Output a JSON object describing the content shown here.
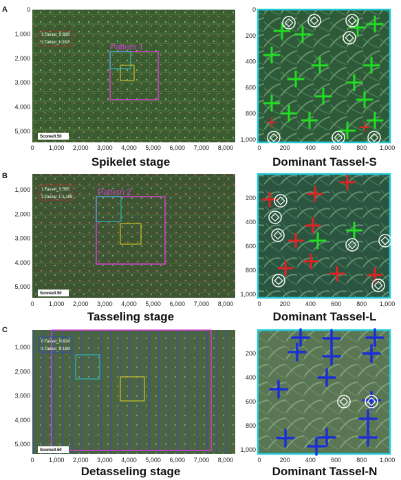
{
  "panels": [
    {
      "letter": "A",
      "stage_title": "Spikelet stage",
      "zoom_title": "Dominant Tassel-S",
      "legend": [
        "1:Tassel_S:939",
        "2:Tassel_L:932"
      ],
      "legend_colors": [
        "#2ecc40",
        "#e03030"
      ],
      "pattern_label": "Pattern 1",
      "score": "Score≥0.50",
      "field_y_ticks": [
        "0",
        "1,000",
        "2,000",
        "3,000",
        "4,000",
        "5,000"
      ],
      "field_x_ticks": [
        "0",
        "1,000",
        "2,000",
        "3,000",
        "4,000",
        "5,000",
        "6,000",
        "7,000",
        "8,000"
      ],
      "zoom_y_ticks": [
        "0",
        "200",
        "400",
        "600",
        "800",
        "1,000"
      ],
      "zoom_x_ticks": [
        "0",
        "200",
        "400",
        "600",
        "800",
        "1,000"
      ],
      "dominant_color": "#22dd22"
    },
    {
      "letter": "B",
      "stage_title": "Tasseling stage",
      "zoom_title": "Dominant Tassel-L",
      "legend": [
        "1:Tassel_S:595",
        "2:Tassel_L:1,189"
      ],
      "legend_colors": [
        "#2ecc40",
        "#e03030"
      ],
      "pattern_label": "Pattern 2",
      "score": "Score≥0.50",
      "field_y_ticks": [
        "1,000",
        "2,000",
        "3,000",
        "4,000",
        "5,000"
      ],
      "field_x_ticks": [
        "0",
        "1,000",
        "2,000",
        "3,000",
        "4,000",
        "5,000",
        "6,000",
        "7,000",
        "8,000"
      ],
      "zoom_y_ticks": [
        "200",
        "400",
        "600",
        "800",
        "1,000"
      ],
      "zoom_x_ticks": [
        "0",
        "200",
        "400",
        "600",
        "800",
        "1,000"
      ],
      "dominant_color": "#e02222"
    },
    {
      "letter": "C",
      "stage_title": "Detasseling stage",
      "zoom_title": "Dominant Tassel-N",
      "legend": [
        "0:Tassel_N:824",
        "1:Tassel_S:188"
      ],
      "legend_colors": [
        "#2244ee",
        "#2ecc40"
      ],
      "pattern_label": "",
      "score": "Score≥0.50",
      "field_y_ticks": [
        "1,000",
        "2,000",
        "3,000",
        "4,000",
        "5,000"
      ],
      "field_x_ticks": [
        "0",
        "1,000",
        "2,000",
        "3,000",
        "4,000",
        "5,000",
        "6,000",
        "7,000",
        "8,000"
      ],
      "zoom_y_ticks": [
        "200",
        "400",
        "600",
        "800",
        "1,000"
      ],
      "zoom_x_ticks": [
        "0",
        "200",
        "400",
        "600",
        "800",
        "1,000"
      ],
      "dominant_color": "#1a2fd6"
    }
  ],
  "colors": {
    "field_bg": "#3c5a32",
    "zoom_bg": "#2f5a3a",
    "pattern_box": "#d23fd2",
    "cyan_box": "#22c8d8",
    "yellow_box": "#e6d820",
    "circle": "#ffffff"
  }
}
